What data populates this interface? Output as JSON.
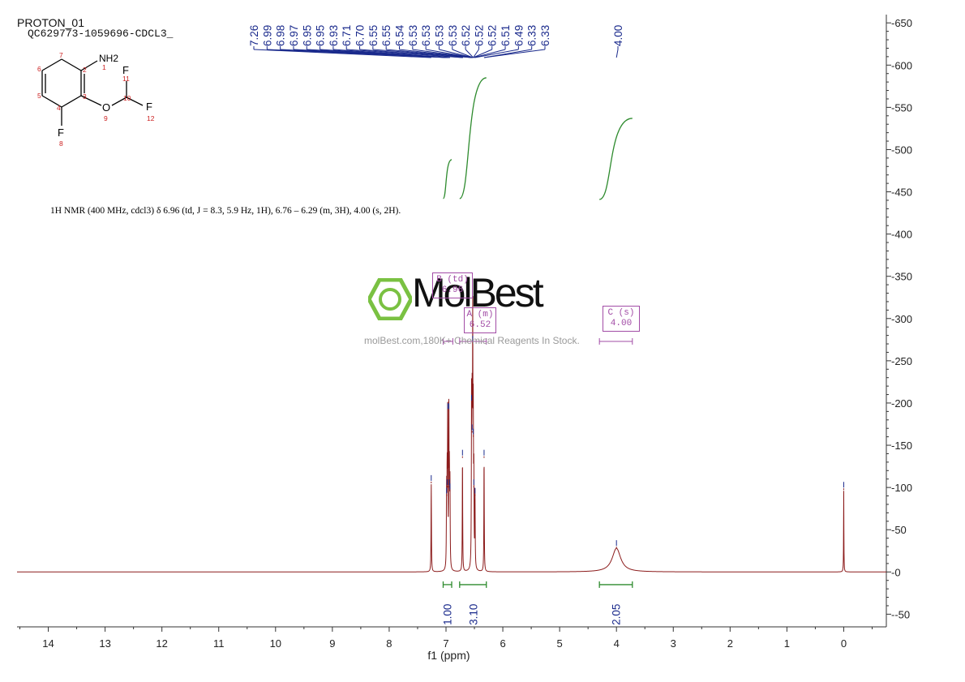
{
  "header": {
    "experiment": "PROTON_01",
    "sample": "QC629773-1059696-CDCL3_"
  },
  "structure": {
    "atom_labels": {
      "n": "NH2",
      "o": "O",
      "f8": "F",
      "f11": "F",
      "f12": "F"
    },
    "numbers": [
      "1",
      "2",
      "3",
      "4",
      "5",
      "6",
      "7",
      "8",
      "9",
      "10",
      "11",
      "12"
    ]
  },
  "nmr_summary": "1H NMR (400 MHz, cdcl3) δ 6.96 (td, J = 8.3, 5.9 Hz, 1H), 6.76 – 6.29 (m, 3H), 4.00 (s, 2H).",
  "watermark": {
    "logo": "MolBest",
    "url": "molBest.com,180K+ Chemical Reagents In Stock."
  },
  "colors": {
    "spectrum": "#8b1a1a",
    "peak_labels": "#1a2a8c",
    "integrals": "#2e8b2e",
    "multiplets": "#a24ca6",
    "axis": "#333333",
    "structure_numbers": "#cc2222",
    "logo_green": "#7ac142"
  },
  "chart_data": {
    "type": "line",
    "title": "",
    "xlabel": "f1 (ppm)",
    "ylabel": "",
    "xlim": [
      14.55,
      -0.75
    ],
    "ylim": [
      -65,
      655
    ],
    "x_reversed": true,
    "grid": false,
    "x_ticks": [
      14,
      13,
      12,
      11,
      10,
      9,
      8,
      7,
      6,
      5,
      4,
      3,
      2,
      1,
      0
    ],
    "y_ticks": [
      650,
      600,
      550,
      500,
      450,
      400,
      350,
      300,
      250,
      200,
      150,
      100,
      50,
      0,
      -50
    ],
    "peak_labels": [
      "7.26",
      "6.99",
      "6.98",
      "6.97",
      "6.95",
      "6.95",
      "6.93",
      "6.71",
      "6.70",
      "6.55",
      "6.55",
      "6.54",
      "6.53",
      "6.53",
      "6.53",
      "6.53",
      "6.52",
      "6.52",
      "6.52",
      "6.51",
      "6.49",
      "6.33",
      "6.33",
      "4.00"
    ],
    "peaks": [
      {
        "ppm": 7.26,
        "height": 105,
        "width": 0.004
      },
      {
        "ppm": 6.99,
        "height": 90,
        "width": 0.004
      },
      {
        "ppm": 6.98,
        "height": 100,
        "width": 0.004
      },
      {
        "ppm": 6.97,
        "height": 190,
        "width": 0.004
      },
      {
        "ppm": 6.95,
        "height": 190,
        "width": 0.004
      },
      {
        "ppm": 6.94,
        "height": 100,
        "width": 0.004
      },
      {
        "ppm": 6.93,
        "height": 95,
        "width": 0.004
      },
      {
        "ppm": 6.71,
        "height": 135,
        "width": 0.004
      },
      {
        "ppm": 6.55,
        "height": 200,
        "width": 0.004
      },
      {
        "ppm": 6.54,
        "height": 165,
        "width": 0.004
      },
      {
        "ppm": 6.53,
        "height": 270,
        "width": 0.004
      },
      {
        "ppm": 6.52,
        "height": 160,
        "width": 0.004
      },
      {
        "ppm": 6.51,
        "height": 100,
        "width": 0.004
      },
      {
        "ppm": 6.49,
        "height": 90,
        "width": 0.004
      },
      {
        "ppm": 6.33,
        "height": 135,
        "width": 0.004
      },
      {
        "ppm": 4.0,
        "height": 28,
        "width": 0.09
      },
      {
        "ppm": 0.0,
        "height": 97,
        "width": 0.003
      }
    ],
    "integrals": [
      {
        "from": 7.05,
        "to": 6.9,
        "value": "1.00",
        "curve_base": 442,
        "curve_top": 488
      },
      {
        "from": 6.76,
        "to": 6.29,
        "value": "3.10",
        "curve_base": 442,
        "curve_top": 585
      },
      {
        "from": 4.3,
        "to": 3.72,
        "value": "2.05",
        "curve_base": 441,
        "curve_top": 537
      }
    ],
    "multiplets": [
      {
        "label": "B (td)",
        "shift": "6.96",
        "from": 7.05,
        "to": 6.88
      },
      {
        "label": "A (m)",
        "shift": "6.52",
        "from": 6.76,
        "to": 6.29
      },
      {
        "label": "C (s)",
        "shift": "4.00",
        "from": 4.3,
        "to": 3.72
      }
    ]
  }
}
